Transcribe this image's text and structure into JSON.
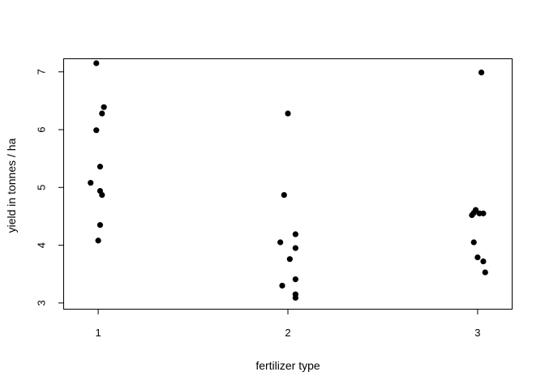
{
  "chart_data": {
    "type": "scatter",
    "title": "",
    "xlabel": "fertilizer type",
    "ylabel": "yield in tonnes / ha",
    "xlim": [
      0.82,
      3.18
    ],
    "ylim": [
      2.9,
      7.22
    ],
    "x_ticks": [
      "1",
      "2",
      "3"
    ],
    "y_ticks": [
      "3",
      "4",
      "5",
      "6",
      "7"
    ],
    "grid": false,
    "legend": "none",
    "point_color": "#000000",
    "points": [
      {
        "x": 0.99,
        "y": 7.15
      },
      {
        "x": 1.03,
        "y": 6.39
      },
      {
        "x": 1.02,
        "y": 6.28
      },
      {
        "x": 0.99,
        "y": 5.99
      },
      {
        "x": 1.01,
        "y": 5.36
      },
      {
        "x": 0.96,
        "y": 5.08
      },
      {
        "x": 1.01,
        "y": 4.94
      },
      {
        "x": 1.02,
        "y": 4.87
      },
      {
        "x": 1.01,
        "y": 4.35
      },
      {
        "x": 1.0,
        "y": 4.08
      },
      {
        "x": 2.0,
        "y": 6.28
      },
      {
        "x": 1.98,
        "y": 4.87
      },
      {
        "x": 2.04,
        "y": 4.19
      },
      {
        "x": 1.96,
        "y": 4.05
      },
      {
        "x": 2.04,
        "y": 3.95
      },
      {
        "x": 2.01,
        "y": 3.76
      },
      {
        "x": 2.04,
        "y": 3.41
      },
      {
        "x": 1.97,
        "y": 3.3
      },
      {
        "x": 2.04,
        "y": 3.15
      },
      {
        "x": 2.04,
        "y": 3.09
      },
      {
        "x": 3.02,
        "y": 6.99
      },
      {
        "x": 2.99,
        "y": 4.61
      },
      {
        "x": 2.98,
        "y": 4.56
      },
      {
        "x": 3.01,
        "y": 4.55
      },
      {
        "x": 3.03,
        "y": 4.55
      },
      {
        "x": 2.97,
        "y": 4.52
      },
      {
        "x": 2.98,
        "y": 4.05
      },
      {
        "x": 3.0,
        "y": 3.79
      },
      {
        "x": 3.03,
        "y": 3.72
      },
      {
        "x": 3.04,
        "y": 3.53
      }
    ]
  }
}
